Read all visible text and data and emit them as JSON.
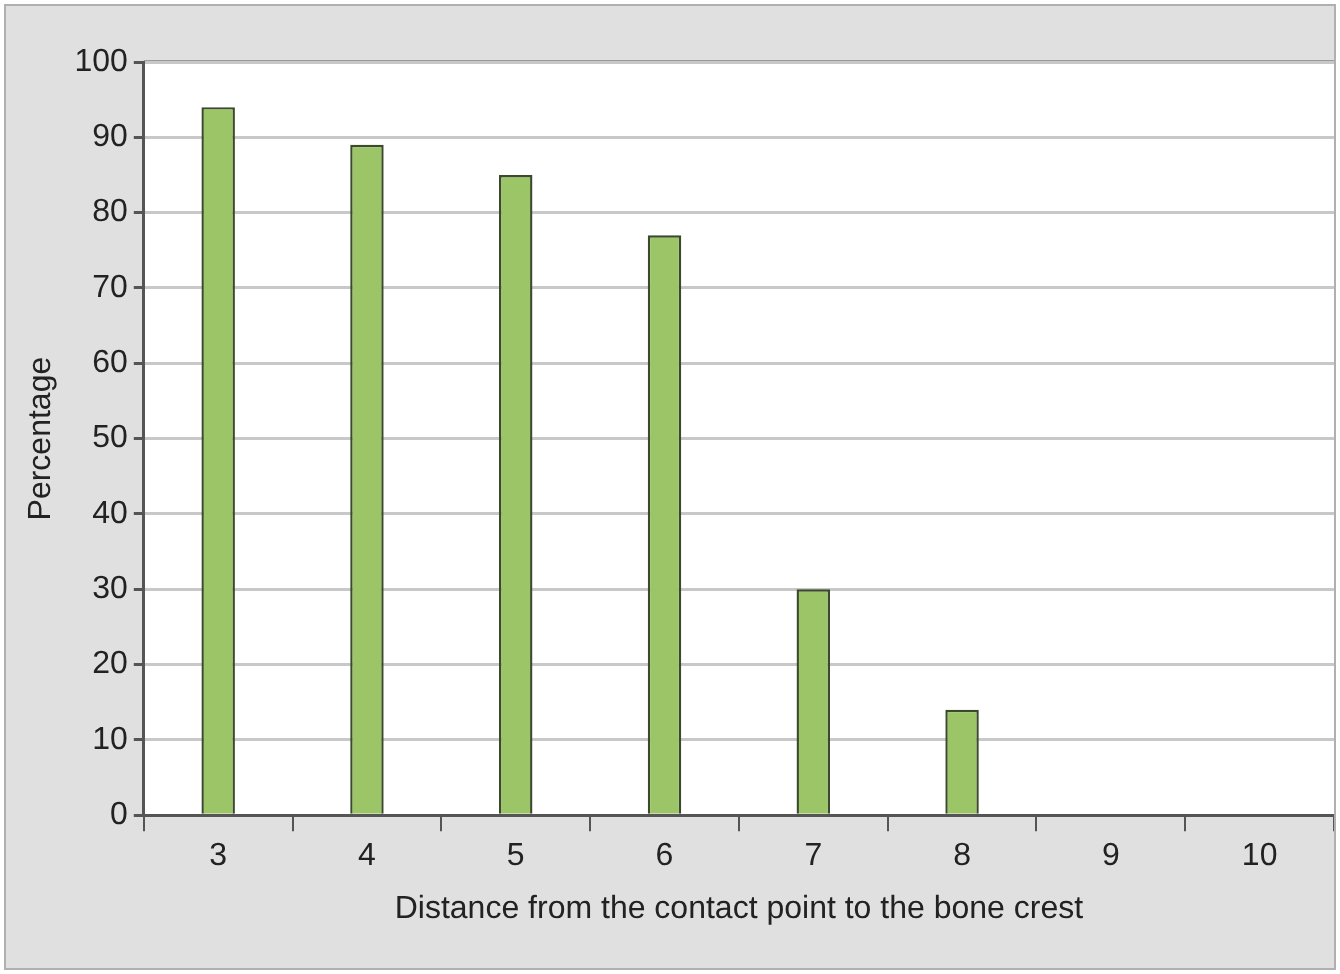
{
  "chart_data": {
    "type": "bar",
    "xlabel": "Distance from the contact point to the bone crest",
    "ylabel": "Percentage",
    "categories": [
      "3",
      "4",
      "5",
      "6",
      "7",
      "8",
      "9",
      "10"
    ],
    "values": [
      94,
      89,
      85,
      77,
      30,
      14,
      0,
      0
    ],
    "color": "#9bc567",
    "ylim": [
      0,
      100
    ],
    "yticks": [
      0,
      10,
      20,
      30,
      40,
      50,
      60,
      70,
      80,
      90,
      100
    ],
    "grid": "y"
  }
}
